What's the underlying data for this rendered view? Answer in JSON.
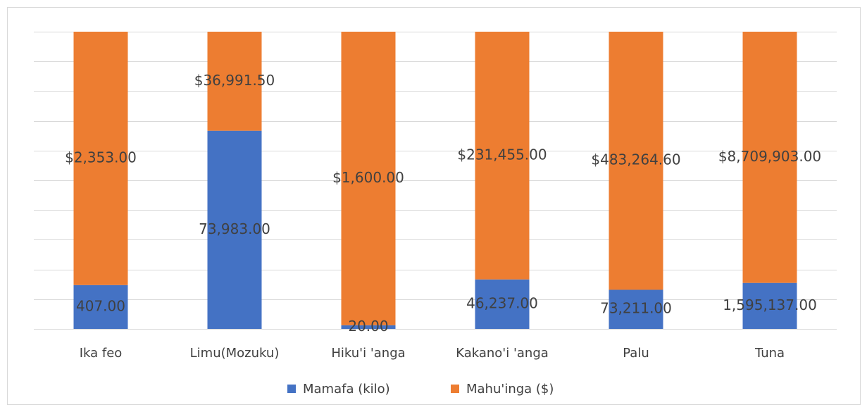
{
  "chart_data": {
    "type": "bar",
    "stacking": "percent",
    "categories": [
      "Ika feo",
      "Limu(Mozuku)",
      "Hiku'i 'anga",
      "Kakano'i 'anga",
      "Palu",
      "Tuna"
    ],
    "series": [
      {
        "name": "Mamafa (kilo)",
        "color": "#4472c4",
        "values": [
          407,
          73983,
          20,
          46237,
          73211,
          1595137
        ],
        "value_labels": [
          "407.00",
          "73,983.00",
          "20.00",
          "46,237.00",
          "73,211.00",
          "1,595,137.00"
        ]
      },
      {
        "name": "Mahu'inga ($)",
        "color": "#ed7d31",
        "values": [
          2353,
          36991.5,
          1600,
          231455,
          483264.6,
          8709903
        ],
        "value_labels": [
          "$2,353.00",
          "$36,991.50",
          "$1,600.00",
          "$231,455.00",
          "$483,264.60",
          "$8,709,903.00"
        ]
      }
    ],
    "ylim": [
      0,
      100
    ],
    "yticks": [
      0,
      10,
      20,
      30,
      40,
      50,
      60,
      70,
      80,
      90,
      100
    ],
    "grid": true,
    "legend": "bottom"
  }
}
